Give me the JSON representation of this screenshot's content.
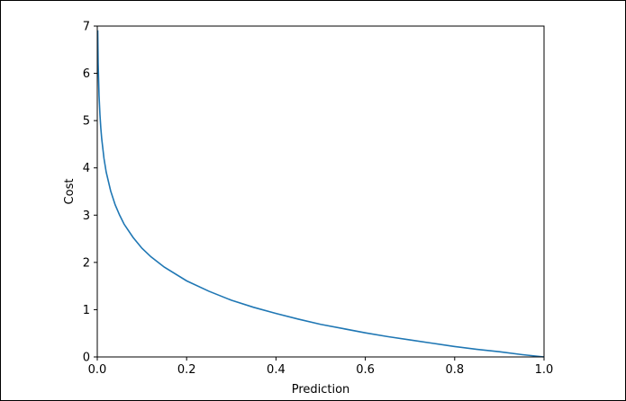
{
  "chart_data": {
    "type": "line",
    "title": "",
    "xlabel": "Prediction",
    "ylabel": "Cost",
    "xlim": [
      0.0,
      1.0
    ],
    "ylim": [
      0,
      7
    ],
    "xticks": [
      0.0,
      0.2,
      0.4,
      0.6,
      0.8,
      1.0
    ],
    "xtick_labels": [
      "0.0",
      "0.2",
      "0.4",
      "0.6",
      "0.8",
      "1.0"
    ],
    "yticks": [
      0,
      1,
      2,
      3,
      4,
      5,
      6,
      7
    ],
    "ytick_labels": [
      "0",
      "1",
      "2",
      "3",
      "4",
      "5",
      "6",
      "7"
    ],
    "grid": false,
    "series": [
      {
        "color": "#1f77b4",
        "x": [
          0.001,
          0.002,
          0.004,
          0.006,
          0.008,
          0.01,
          0.015,
          0.02,
          0.03,
          0.04,
          0.05,
          0.06,
          0.08,
          0.1,
          0.12,
          0.15,
          0.2,
          0.25,
          0.3,
          0.35,
          0.4,
          0.45,
          0.5,
          0.55,
          0.6,
          0.65,
          0.7,
          0.75,
          0.8,
          0.85,
          0.9,
          0.95,
          1.0
        ],
        "y": [
          6.91,
          6.21,
          5.52,
          5.12,
          4.83,
          4.61,
          4.2,
          3.91,
          3.51,
          3.22,
          3.0,
          2.81,
          2.53,
          2.3,
          2.12,
          1.9,
          1.61,
          1.39,
          1.2,
          1.05,
          0.92,
          0.8,
          0.69,
          0.6,
          0.51,
          0.43,
          0.36,
          0.29,
          0.22,
          0.16,
          0.11,
          0.05,
          0.0
        ]
      }
    ]
  }
}
